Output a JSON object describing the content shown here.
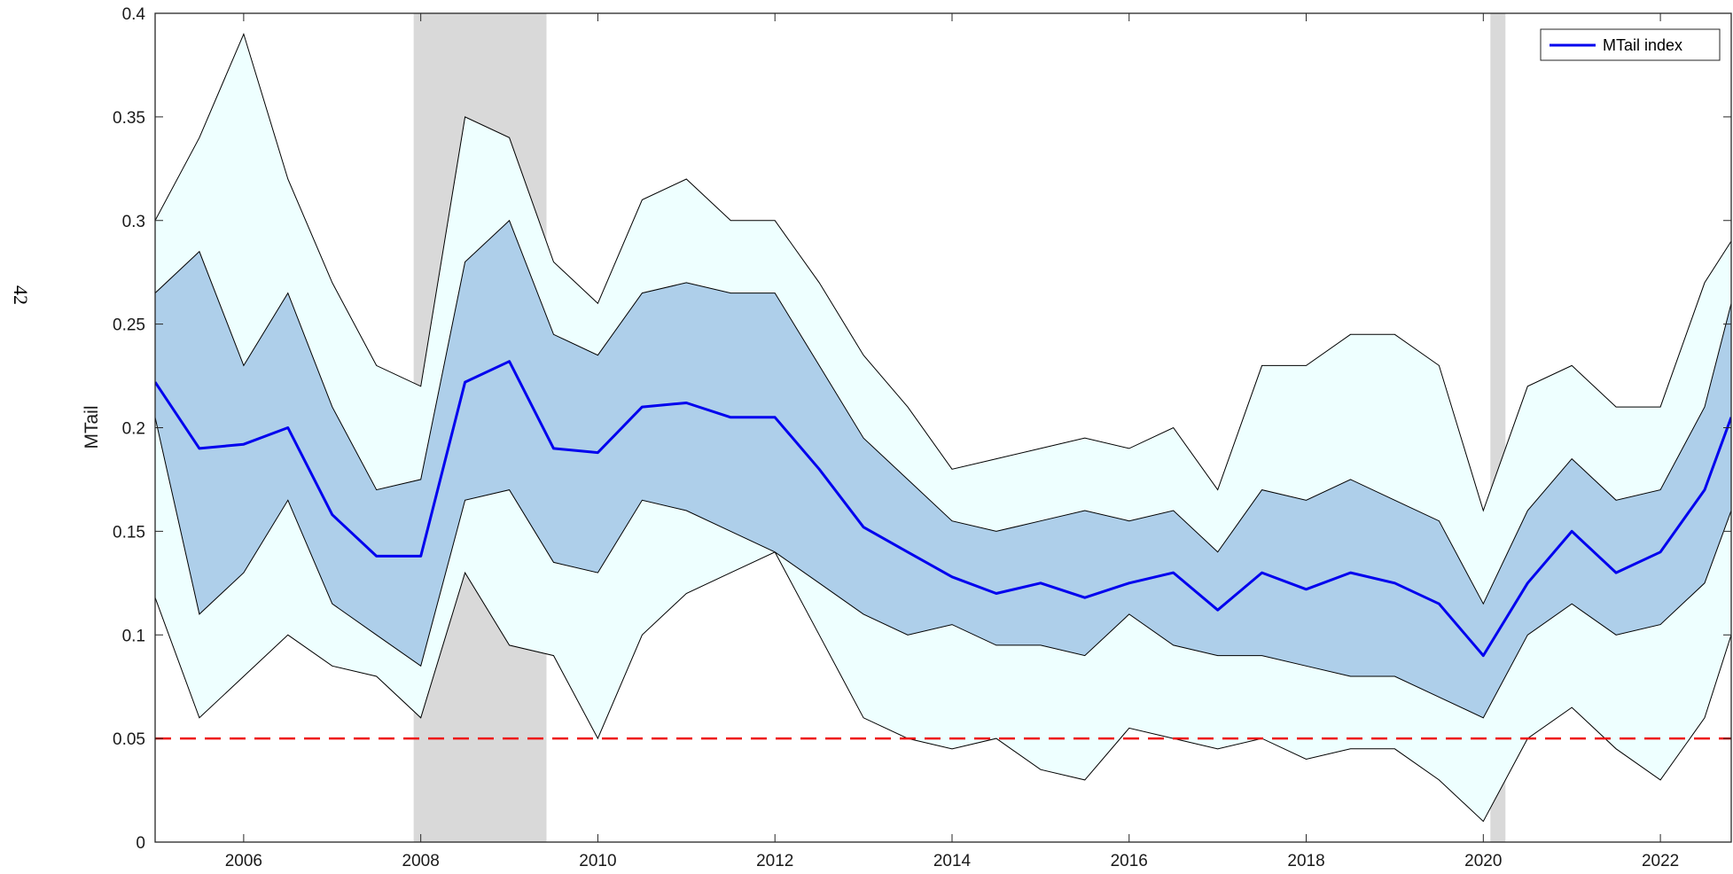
{
  "page": {
    "page_number": "42"
  },
  "chart_data": {
    "type": "line",
    "title": "",
    "xlabel": "",
    "ylabel": "MTail",
    "xlim": [
      2005.0,
      2022.8
    ],
    "ylim": [
      0,
      0.4
    ],
    "x_ticks": [
      2006,
      2008,
      2010,
      2012,
      2014,
      2016,
      2018,
      2020,
      2022
    ],
    "x_tick_labels": [
      "2006",
      "2008",
      "2010",
      "2012",
      "2014",
      "2016",
      "2018",
      "2020",
      "2022"
    ],
    "y_ticks": [
      0,
      0.05,
      0.1,
      0.15,
      0.2,
      0.25,
      0.3,
      0.35,
      0.4
    ],
    "y_tick_labels": [
      "0",
      "0.05",
      "0.1",
      "0.15",
      "0.2",
      "0.25",
      "0.3",
      "0.35",
      "0.4"
    ],
    "grid": false,
    "legend": {
      "placement": "top-right",
      "entries": [
        "MTail index"
      ]
    },
    "reference_line": {
      "y": 0.05,
      "style": "dashed",
      "color": "#ee1111"
    },
    "shaded_periods": [
      {
        "x": [
          2007.92,
          2009.42
        ]
      },
      {
        "x": [
          2020.08,
          2020.25
        ]
      }
    ],
    "colors": {
      "index_line": "#0000ee",
      "inner_band": "#aecfea",
      "outer_band": "#eeffff",
      "band_edge": "#000000",
      "shaded_period": "#d9d9d9"
    },
    "x": [
      2005.0,
      2005.5,
      2006.0,
      2006.5,
      2007.0,
      2007.5,
      2008.0,
      2008.5,
      2009.0,
      2009.5,
      2010.0,
      2010.5,
      2011.0,
      2011.5,
      2012.0,
      2012.5,
      2013.0,
      2013.5,
      2014.0,
      2014.5,
      2015.0,
      2015.5,
      2016.0,
      2016.5,
      2017.0,
      2017.5,
      2018.0,
      2018.5,
      2019.0,
      2019.5,
      2020.0,
      2020.5,
      2021.0,
      2021.5,
      2022.0,
      2022.5,
      2022.8
    ],
    "series": [
      {
        "name": "MTail index",
        "values": [
          0.222,
          0.19,
          0.192,
          0.2,
          0.158,
          0.138,
          0.138,
          0.222,
          0.232,
          0.19,
          0.188,
          0.21,
          0.212,
          0.205,
          0.205,
          0.18,
          0.152,
          0.14,
          0.128,
          0.12,
          0.125,
          0.118,
          0.125,
          0.13,
          0.112,
          0.13,
          0.122,
          0.13,
          0.125,
          0.115,
          0.09,
          0.125,
          0.15,
          0.13,
          0.14,
          0.17,
          0.205
        ]
      },
      {
        "name": "",
        "values": [
          0.205,
          0.11,
          0.13,
          0.165,
          0.115,
          0.1,
          0.085,
          0.165,
          0.17,
          0.135,
          0.13,
          0.165,
          0.16,
          0.15,
          0.14,
          0.125,
          0.11,
          0.1,
          0.105,
          0.095,
          0.095,
          0.09,
          0.11,
          0.095,
          0.09,
          0.09,
          0.085,
          0.08,
          0.08,
          0.07,
          0.06,
          0.1,
          0.115,
          0.1,
          0.105,
          0.125,
          0.16
        ]
      },
      {
        "name": "",
        "values": [
          0.265,
          0.285,
          0.23,
          0.265,
          0.21,
          0.17,
          0.175,
          0.28,
          0.3,
          0.245,
          0.235,
          0.265,
          0.27,
          0.265,
          0.265,
          0.23,
          0.195,
          0.175,
          0.155,
          0.15,
          0.155,
          0.16,
          0.155,
          0.16,
          0.14,
          0.17,
          0.165,
          0.175,
          0.165,
          0.155,
          0.115,
          0.16,
          0.185,
          0.165,
          0.17,
          0.21,
          0.26
        ]
      },
      {
        "name": "",
        "values": [
          0.118,
          0.06,
          0.08,
          0.1,
          0.085,
          0.08,
          0.06,
          0.13,
          0.095,
          0.09,
          0.05,
          0.1,
          0.12,
          0.13,
          0.14,
          0.1,
          0.06,
          0.05,
          0.045,
          0.05,
          0.035,
          0.03,
          0.055,
          0.05,
          0.045,
          0.05,
          0.04,
          0.045,
          0.045,
          0.03,
          0.01,
          0.05,
          0.065,
          0.045,
          0.03,
          0.06,
          0.1
        ]
      },
      {
        "name": "",
        "values": [
          0.3,
          0.34,
          0.39,
          0.32,
          0.27,
          0.23,
          0.22,
          0.35,
          0.34,
          0.28,
          0.26,
          0.31,
          0.32,
          0.3,
          0.3,
          0.27,
          0.235,
          0.21,
          0.18,
          0.185,
          0.19,
          0.195,
          0.19,
          0.2,
          0.17,
          0.23,
          0.23,
          0.245,
          0.245,
          0.23,
          0.16,
          0.22,
          0.23,
          0.21,
          0.21,
          0.27,
          0.29
        ]
      }
    ],
    "band_pairs": [
      {
        "role": "inner",
        "lower": 1,
        "upper": 2
      },
      {
        "role": "outer",
        "lower": 3,
        "upper": 4
      }
    ]
  }
}
